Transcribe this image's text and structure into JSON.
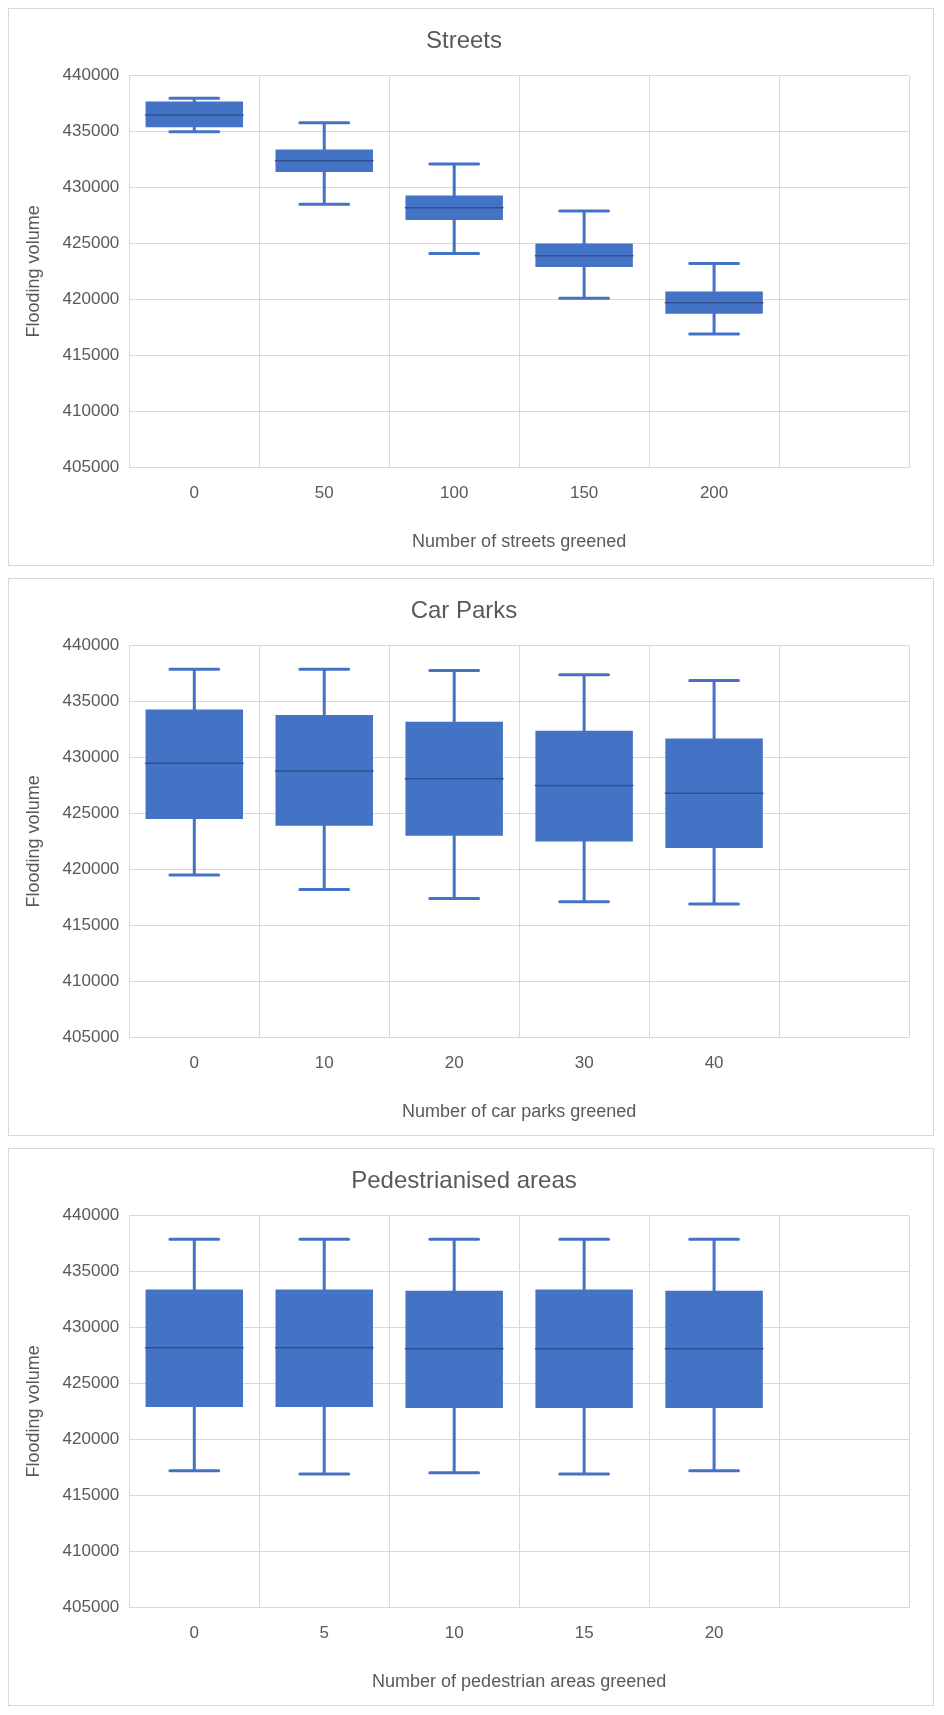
{
  "chart_data": [
    {
      "type": "box",
      "title": "Streets",
      "xlabel": "Number of streets greened",
      "ylabel": "Flooding volume",
      "categories": [
        "0",
        "50",
        "100",
        "150",
        "200",
        null
      ],
      "color": "#4472c4",
      "ylim": [
        405000,
        440000
      ],
      "yticks": [
        405000,
        410000,
        415000,
        420000,
        425000,
        430000,
        435000,
        440000
      ],
      "grid": true,
      "boxes": [
        {
          "low": 435000,
          "q1": 435400,
          "median": 436500,
          "q3": 437700,
          "high": 438000
        },
        {
          "low": 428500,
          "q1": 431400,
          "median": 432400,
          "q3": 433400,
          "high": 435800
        },
        {
          "low": 424100,
          "q1": 427100,
          "median": 428200,
          "q3": 429300,
          "high": 432100
        },
        {
          "low": 420100,
          "q1": 422900,
          "median": 423900,
          "q3": 425000,
          "high": 427900
        },
        {
          "low": 416900,
          "q1": 418700,
          "median": 419700,
          "q3": 420700,
          "high": 423200
        },
        null
      ]
    },
    {
      "type": "box",
      "title": "Car Parks",
      "xlabel": "Number of car parks greened",
      "ylabel": "Flooding volume",
      "categories": [
        "0",
        "10",
        "20",
        "30",
        "40",
        null
      ],
      "color": "#4472c4",
      "ylim": [
        405000,
        440000
      ],
      "yticks": [
        405000,
        410000,
        415000,
        420000,
        425000,
        430000,
        435000,
        440000
      ],
      "grid": true,
      "boxes": [
        {
          "low": 419500,
          "q1": 424500,
          "median": 429500,
          "q3": 434300,
          "high": 437900
        },
        {
          "low": 418200,
          "q1": 423900,
          "median": 428800,
          "q3": 433800,
          "high": 437900
        },
        {
          "low": 417400,
          "q1": 423000,
          "median": 428100,
          "q3": 433200,
          "high": 437800
        },
        {
          "low": 417100,
          "q1": 422500,
          "median": 427500,
          "q3": 432400,
          "high": 437400
        },
        {
          "low": 416900,
          "q1": 421900,
          "median": 426800,
          "q3": 431700,
          "high": 436900
        },
        null
      ]
    },
    {
      "type": "box",
      "title": "Pedestrianised areas",
      "xlabel": "Number of pedestrian areas greened",
      "ylabel": "Flooding volume",
      "categories": [
        "0",
        "5",
        "10",
        "15",
        "20",
        null
      ],
      "color": "#4472c4",
      "ylim": [
        405000,
        440000
      ],
      "yticks": [
        405000,
        410000,
        415000,
        420000,
        425000,
        430000,
        435000,
        440000
      ],
      "grid": true,
      "boxes": [
        {
          "low": 417200,
          "q1": 422900,
          "median": 428200,
          "q3": 433400,
          "high": 437900
        },
        {
          "low": 416900,
          "q1": 422900,
          "median": 428200,
          "q3": 433400,
          "high": 437900
        },
        {
          "low": 417000,
          "q1": 422800,
          "median": 428100,
          "q3": 433300,
          "high": 437900
        },
        {
          "low": 416900,
          "q1": 422800,
          "median": 428100,
          "q3": 433400,
          "high": 437900
        },
        {
          "low": 417200,
          "q1": 422800,
          "median": 428100,
          "q3": 433300,
          "high": 437900
        },
        null
      ]
    }
  ]
}
